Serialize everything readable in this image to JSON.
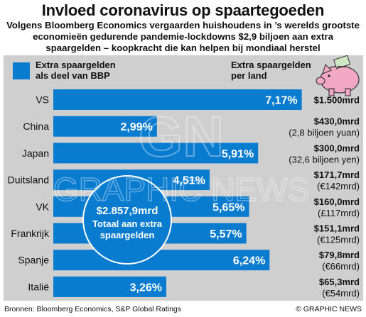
{
  "title": "Invloed coronavirus op spaartegoeden",
  "subtitle": "Volgens Bloomberg Economics vergaarden huishoudens in ’s werelds grootste economieën gedurende pandemie-lockdowns $2,9 biljoen aan extra spaargelden – koopkracht die kan helpen bij mondiaal herstel",
  "legend": {
    "left_label_1": "Extra spaargelden",
    "left_label_2": "als deel van BBP",
    "right_label_1": "Extra spaargelden",
    "right_label_2": "per land"
  },
  "callout": {
    "amount": "$2.857,9mrd",
    "line1": "Totaal aan extra",
    "line2": "spaargelden"
  },
  "watermark": {
    "text": "GRAPHIC NEWS",
    "mono": "GN"
  },
  "footer": {
    "source": "Bronnen: Bloomberg Economics, S&P Global Ratings",
    "credit": "© GRAPHIC NEWS"
  },
  "colors": {
    "bar": "#0a7ccf",
    "panel": "#cfcfcf",
    "piggy": "#f2a7c3"
  },
  "chart_data": {
    "type": "bar",
    "orientation": "horizontal",
    "categories": [
      "VS",
      "China",
      "Japan",
      "Duitsland",
      "VK",
      "Frankrijk",
      "Spanje",
      "Italië"
    ],
    "values": [
      7.17,
      2.99,
      5.91,
      4.51,
      5.65,
      5.57,
      6.24,
      3.26
    ],
    "value_labels": [
      "7,17%",
      "2,99%",
      "5,91%",
      "4,51%",
      "5,65%",
      "5,57%",
      "6,24%",
      "3,26%"
    ],
    "amounts": [
      "$1.500mrd",
      "$430,0mrd",
      "$300,0mrd",
      "$171,7mrd",
      "$160,0mrd",
      "$151,1mrd",
      "$79,8mrd",
      "$65,3mrd"
    ],
    "amount_notes": [
      "",
      "(2,8 biljoen yuan)",
      "(32,6 biljoen yen)",
      "(€142mrd)",
      "(£117mrd)",
      "(€125mrd)",
      "(€66mrd)",
      "(€54mrd)"
    ],
    "xlim": [
      0,
      7.3
    ]
  }
}
